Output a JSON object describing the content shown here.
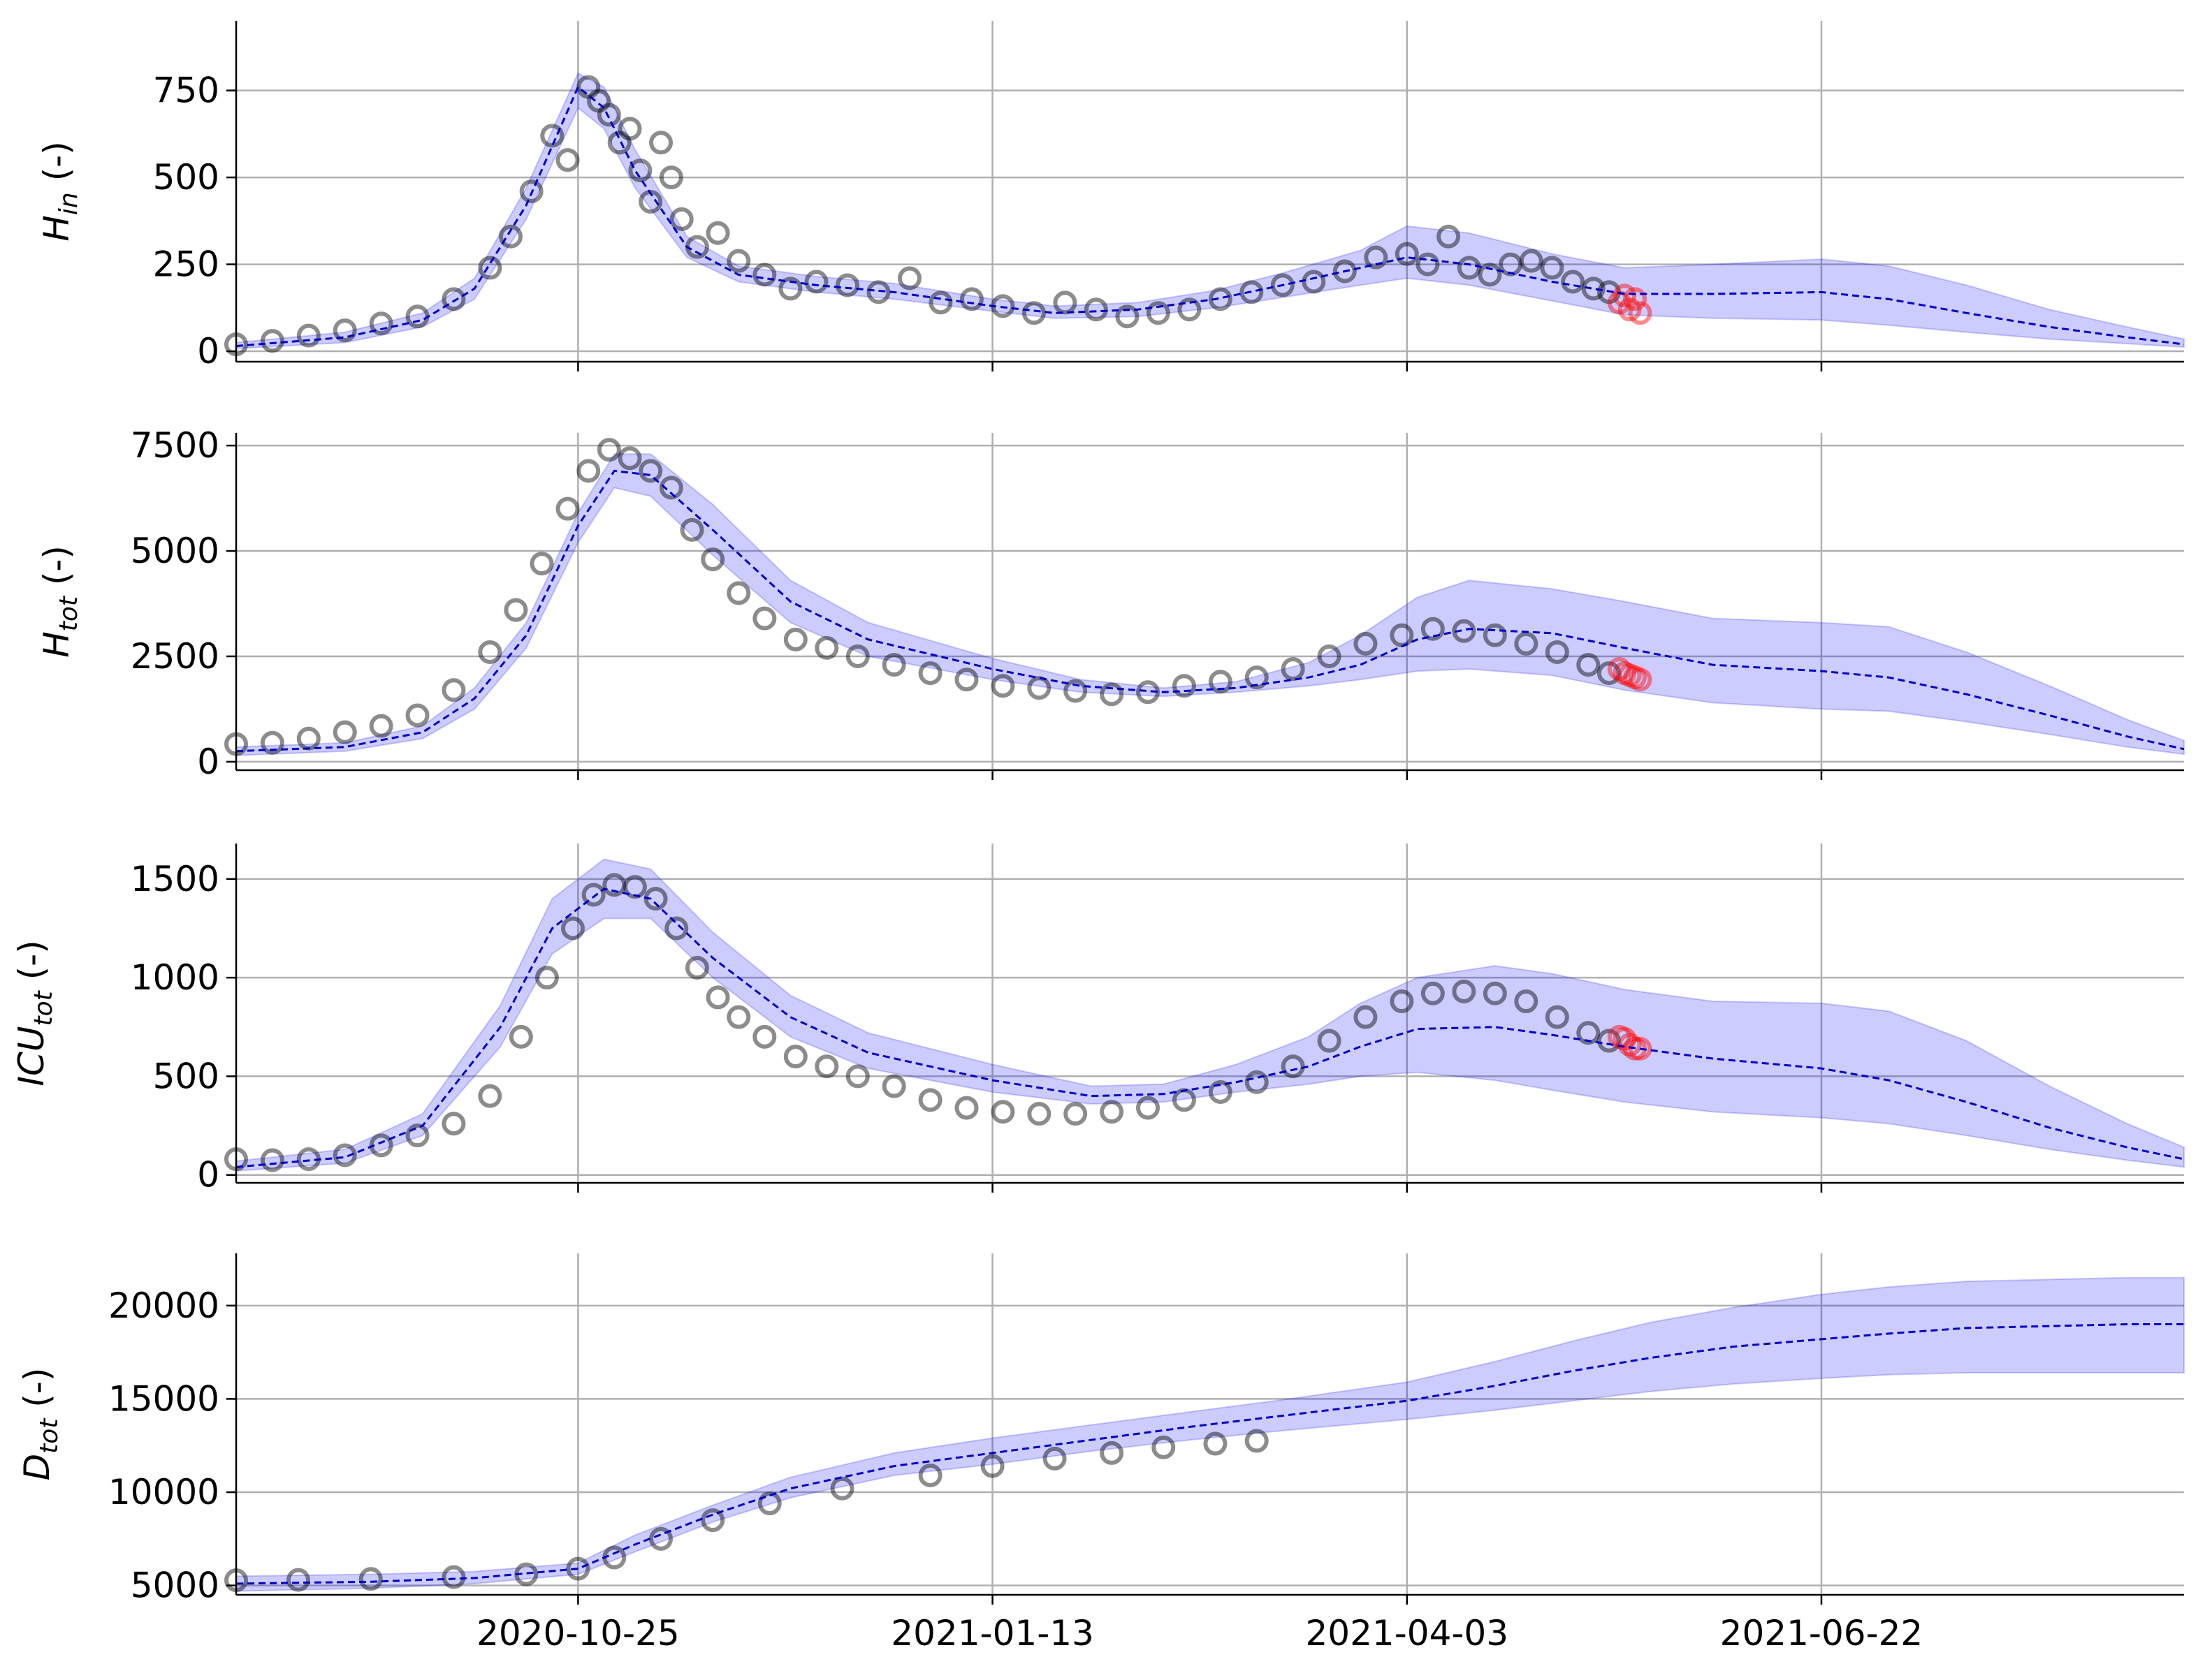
{
  "chart_data": [
    {
      "type": "line",
      "ylabel": {
        "base": "H",
        "sub": "in",
        "suffix": " (-)"
      },
      "ylim": [
        -30,
        950
      ],
      "yticks": [
        0,
        250,
        500,
        750
      ],
      "x_dates": [],
      "observed": {
        "dates": [
          "2020-08-20",
          "2020-08-27",
          "2020-09-03",
          "2020-09-10",
          "2020-09-17",
          "2020-09-24",
          "2020-10-01",
          "2020-10-08",
          "2020-10-12",
          "2020-10-16",
          "2020-10-20",
          "2020-10-23",
          "2020-10-27",
          "2020-10-29",
          "2020-10-31",
          "2020-11-02",
          "2020-11-04",
          "2020-11-06",
          "2020-11-08",
          "2020-11-10",
          "2020-11-12",
          "2020-11-14",
          "2020-11-17",
          "2020-11-21",
          "2020-11-25",
          "2020-11-30",
          "2020-12-05",
          "2020-12-10",
          "2020-12-16",
          "2020-12-22",
          "2020-12-28",
          "2021-01-03",
          "2021-01-09",
          "2021-01-15",
          "2021-01-21",
          "2021-01-27",
          "2021-02-02",
          "2021-02-08",
          "2021-02-14",
          "2021-02-20",
          "2021-02-26",
          "2021-03-04",
          "2021-03-10",
          "2021-03-16",
          "2021-03-22",
          "2021-03-28",
          "2021-04-03",
          "2021-04-07",
          "2021-04-11",
          "2021-04-15",
          "2021-04-19",
          "2021-04-23",
          "2021-04-27",
          "2021-05-01",
          "2021-05-05",
          "2021-05-09",
          "2021-05-12"
        ],
        "values": [
          20,
          30,
          45,
          60,
          80,
          100,
          150,
          240,
          330,
          460,
          620,
          550,
          760,
          720,
          680,
          600,
          640,
          520,
          430,
          600,
          500,
          380,
          300,
          340,
          260,
          220,
          180,
          200,
          190,
          170,
          210,
          140,
          150,
          130,
          110,
          140,
          120,
          100,
          110,
          120,
          150,
          170,
          190,
          200,
          230,
          270,
          280,
          250,
          330,
          240,
          220,
          250,
          260,
          240,
          200,
          180,
          170
        ]
      },
      "validation": {
        "dates": [
          "2021-05-14",
          "2021-05-15",
          "2021-05-16",
          "2021-05-17",
          "2021-05-18"
        ],
        "values": [
          140,
          160,
          120,
          150,
          110
        ]
      },
      "mean": {
        "dates": [
          "2020-08-20",
          "2020-09-10",
          "2020-09-25",
          "2020-10-05",
          "2020-10-15",
          "2020-10-25",
          "2020-10-30",
          "2020-11-05",
          "2020-11-15",
          "2020-11-25",
          "2020-12-10",
          "2020-12-25",
          "2021-01-13",
          "2021-01-25",
          "2021-02-10",
          "2021-02-25",
          "2021-03-10",
          "2021-03-25",
          "2021-04-03",
          "2021-04-15",
          "2021-05-01",
          "2021-05-15",
          "2021-06-01",
          "2021-06-22",
          "2021-07-05",
          "2021-07-20",
          "2021-08-05",
          "2021-08-20",
          "2021-08-31"
        ],
        "values": [
          15,
          40,
          90,
          180,
          420,
          760,
          700,
          520,
          300,
          220,
          190,
          170,
          130,
          110,
          120,
          150,
          190,
          240,
          270,
          250,
          200,
          165,
          165,
          170,
          150,
          110,
          70,
          40,
          20
        ]
      },
      "band": {
        "dates": [
          "2020-08-20",
          "2020-09-10",
          "2020-09-25",
          "2020-10-05",
          "2020-10-15",
          "2020-10-25",
          "2020-10-30",
          "2020-11-05",
          "2020-11-15",
          "2020-11-25",
          "2020-12-10",
          "2020-12-25",
          "2021-01-13",
          "2021-01-25",
          "2021-02-10",
          "2021-02-25",
          "2021-03-10",
          "2021-03-25",
          "2021-04-03",
          "2021-04-15",
          "2021-05-01",
          "2021-05-15",
          "2021-06-01",
          "2021-06-22",
          "2021-07-05",
          "2021-07-20",
          "2021-08-05",
          "2021-08-20",
          "2021-08-31"
        ],
        "lower": [
          8,
          25,
          70,
          150,
          380,
          700,
          640,
          470,
          270,
          200,
          170,
          150,
          115,
          95,
          100,
          125,
          155,
          190,
          210,
          190,
          145,
          105,
          95,
          90,
          75,
          55,
          35,
          22,
          12
        ],
        "upper": [
          25,
          55,
          110,
          210,
          470,
          800,
          760,
          580,
          330,
          245,
          215,
          195,
          150,
          130,
          140,
          175,
          225,
          290,
          360,
          340,
          280,
          240,
          250,
          265,
          245,
          190,
          120,
          70,
          35
        ]
      }
    },
    {
      "type": "line",
      "ylabel": {
        "base": "H",
        "sub": "tot",
        "suffix": " (-)"
      },
      "ylim": [
        -200,
        7800
      ],
      "yticks": [
        0,
        2500,
        5000,
        7500
      ],
      "x_dates": [],
      "observed": {
        "dates": [
          "2020-08-20",
          "2020-08-27",
          "2020-09-03",
          "2020-09-10",
          "2020-09-17",
          "2020-09-24",
          "2020-10-01",
          "2020-10-08",
          "2020-10-13",
          "2020-10-18",
          "2020-10-23",
          "2020-10-27",
          "2020-10-31",
          "2020-11-04",
          "2020-11-08",
          "2020-11-12",
          "2020-11-16",
          "2020-11-20",
          "2020-11-25",
          "2020-11-30",
          "2020-12-06",
          "2020-12-12",
          "2020-12-18",
          "2020-12-25",
          "2021-01-01",
          "2021-01-08",
          "2021-01-15",
          "2021-01-22",
          "2021-01-29",
          "2021-02-05",
          "2021-02-12",
          "2021-02-19",
          "2021-02-26",
          "2021-03-05",
          "2021-03-12",
          "2021-03-19",
          "2021-03-26",
          "2021-04-02",
          "2021-04-08",
          "2021-04-14",
          "2021-04-20",
          "2021-04-26",
          "2021-05-02",
          "2021-05-08",
          "2021-05-12"
        ],
        "values": [
          420,
          450,
          550,
          700,
          850,
          1100,
          1700,
          2600,
          3600,
          4700,
          6000,
          6900,
          7400,
          7200,
          6900,
          6500,
          5500,
          4800,
          4000,
          3400,
          2900,
          2700,
          2500,
          2300,
          2100,
          1950,
          1800,
          1750,
          1680,
          1600,
          1650,
          1800,
          1900,
          2000,
          2200,
          2500,
          2800,
          3000,
          3150,
          3100,
          3000,
          2800,
          2600,
          2300,
          2100
        ]
      },
      "validation": {
        "dates": [
          "2021-05-14",
          "2021-05-15",
          "2021-05-16",
          "2021-05-17",
          "2021-05-18"
        ],
        "values": [
          2200,
          2100,
          2050,
          2000,
          1950
        ]
      },
      "mean": {
        "dates": [
          "2020-08-20",
          "2020-09-10",
          "2020-09-25",
          "2020-10-05",
          "2020-10-15",
          "2020-10-25",
          "2020-11-01",
          "2020-11-08",
          "2020-11-20",
          "2020-12-05",
          "2020-12-20",
          "2021-01-13",
          "2021-01-30",
          "2021-02-15",
          "2021-03-01",
          "2021-03-15",
          "2021-03-25",
          "2021-04-05",
          "2021-04-15",
          "2021-05-01",
          "2021-05-15",
          "2021-06-01",
          "2021-06-22",
          "2021-07-05",
          "2021-07-20",
          "2021-08-05",
          "2021-08-20",
          "2021-08-31"
        ],
        "values": [
          250,
          350,
          700,
          1500,
          3000,
          5600,
          6900,
          6800,
          5500,
          3800,
          2900,
          2200,
          1800,
          1650,
          1750,
          2000,
          2300,
          2900,
          3150,
          3050,
          2700,
          2300,
          2150,
          2000,
          1600,
          1100,
          600,
          300
        ]
      },
      "band": {
        "dates": [
          "2020-08-20",
          "2020-09-10",
          "2020-09-25",
          "2020-10-05",
          "2020-10-15",
          "2020-10-25",
          "2020-11-01",
          "2020-11-08",
          "2020-11-20",
          "2020-12-05",
          "2020-12-20",
          "2021-01-13",
          "2021-01-30",
          "2021-02-15",
          "2021-03-01",
          "2021-03-15",
          "2021-03-25",
          "2021-04-05",
          "2021-04-15",
          "2021-05-01",
          "2021-05-15",
          "2021-06-01",
          "2021-06-22",
          "2021-07-05",
          "2021-07-20",
          "2021-08-05",
          "2021-08-20",
          "2021-08-31"
        ],
        "lower": [
          150,
          250,
          550,
          1250,
          2700,
          5200,
          6500,
          6300,
          4900,
          3300,
          2500,
          1950,
          1650,
          1550,
          1650,
          1800,
          1950,
          2150,
          2200,
          2050,
          1700,
          1400,
          1250,
          1200,
          950,
          650,
          350,
          180
        ],
        "upper": [
          350,
          450,
          850,
          1750,
          3300,
          5900,
          7300,
          7300,
          6100,
          4300,
          3300,
          2450,
          1950,
          1750,
          1900,
          2350,
          3000,
          3900,
          4300,
          4100,
          3800,
          3400,
          3300,
          3200,
          2600,
          1800,
          1000,
          500
        ]
      }
    },
    {
      "type": "line",
      "ylabel": {
        "base": "ICU",
        "sub": "tot",
        "suffix": " (-)"
      },
      "ylim": [
        -40,
        1680
      ],
      "yticks": [
        0,
        500,
        1000,
        1500
      ],
      "x_dates": [],
      "observed": {
        "dates": [
          "2020-08-20",
          "2020-08-27",
          "2020-09-03",
          "2020-09-10",
          "2020-09-17",
          "2020-09-24",
          "2020-10-01",
          "2020-10-08",
          "2020-10-14",
          "2020-10-19",
          "2020-10-24",
          "2020-10-28",
          "2020-11-01",
          "2020-11-05",
          "2020-11-09",
          "2020-11-13",
          "2020-11-17",
          "2020-11-21",
          "2020-11-25",
          "2020-11-30",
          "2020-12-06",
          "2020-12-12",
          "2020-12-18",
          "2020-12-25",
          "2021-01-01",
          "2021-01-08",
          "2021-01-15",
          "2021-01-22",
          "2021-01-29",
          "2021-02-05",
          "2021-02-12",
          "2021-02-19",
          "2021-02-26",
          "2021-03-05",
          "2021-03-12",
          "2021-03-19",
          "2021-03-26",
          "2021-04-02",
          "2021-04-08",
          "2021-04-14",
          "2021-04-20",
          "2021-04-26",
          "2021-05-02",
          "2021-05-08",
          "2021-05-12"
        ],
        "values": [
          80,
          75,
          80,
          100,
          150,
          200,
          260,
          400,
          700,
          1000,
          1250,
          1420,
          1470,
          1460,
          1400,
          1250,
          1050,
          900,
          800,
          700,
          600,
          550,
          500,
          450,
          380,
          340,
          320,
          310,
          310,
          320,
          340,
          380,
          420,
          470,
          550,
          680,
          800,
          880,
          920,
          930,
          920,
          880,
          800,
          720,
          680
        ]
      },
      "validation": {
        "dates": [
          "2021-05-14",
          "2021-05-15",
          "2021-05-16",
          "2021-05-17",
          "2021-05-18"
        ],
        "values": [
          700,
          690,
          660,
          640,
          640
        ]
      },
      "mean": {
        "dates": [
          "2020-08-20",
          "2020-09-10",
          "2020-09-25",
          "2020-10-10",
          "2020-10-20",
          "2020-10-30",
          "2020-11-08",
          "2020-11-20",
          "2020-12-05",
          "2020-12-20",
          "2021-01-13",
          "2021-02-01",
          "2021-02-15",
          "2021-03-01",
          "2021-03-15",
          "2021-03-25",
          "2021-04-05",
          "2021-04-20",
          "2021-05-01",
          "2021-05-15",
          "2021-06-01",
          "2021-06-22",
          "2021-07-05",
          "2021-07-20",
          "2021-08-05",
          "2021-08-20",
          "2021-08-31"
        ],
        "values": [
          40,
          90,
          250,
          750,
          1250,
          1450,
          1400,
          1100,
          800,
          620,
          480,
          400,
          410,
          470,
          550,
          650,
          740,
          750,
          710,
          650,
          590,
          540,
          480,
          370,
          240,
          140,
          80
        ]
      },
      "band": {
        "dates": [
          "2020-08-20",
          "2020-09-10",
          "2020-09-25",
          "2020-10-10",
          "2020-10-20",
          "2020-10-30",
          "2020-11-08",
          "2020-11-20",
          "2020-12-05",
          "2020-12-20",
          "2021-01-13",
          "2021-02-01",
          "2021-02-15",
          "2021-03-01",
          "2021-03-15",
          "2021-03-25",
          "2021-04-05",
          "2021-04-20",
          "2021-05-01",
          "2021-05-15",
          "2021-06-01",
          "2021-06-22",
          "2021-07-05",
          "2021-07-20",
          "2021-08-05",
          "2021-08-20",
          "2021-08-31"
        ],
        "lower": [
          20,
          60,
          200,
          650,
          1120,
          1300,
          1300,
          1000,
          700,
          540,
          420,
          360,
          370,
          420,
          460,
          500,
          520,
          480,
          430,
          370,
          320,
          290,
          260,
          200,
          130,
          75,
          40
        ],
        "upper": [
          70,
          130,
          310,
          860,
          1400,
          1600,
          1550,
          1230,
          910,
          720,
          560,
          450,
          460,
          560,
          700,
          870,
          1000,
          1060,
          1020,
          940,
          880,
          870,
          830,
          680,
          450,
          260,
          140
        ]
      }
    },
    {
      "type": "line",
      "ylabel": {
        "base": "D",
        "sub": "tot",
        "suffix": " (-)"
      },
      "ylim": [
        4500,
        22800
      ],
      "yticks": [
        5000,
        10000,
        15000,
        20000
      ],
      "x_dates": [
        "2020-10-25",
        "2021-01-13",
        "2021-04-03",
        "2021-06-22"
      ],
      "observed": {
        "dates": [
          "2020-08-20",
          "2020-09-01",
          "2020-09-15",
          "2020-10-01",
          "2020-10-15",
          "2020-10-25",
          "2020-11-01",
          "2020-11-10",
          "2020-11-20",
          "2020-12-01",
          "2020-12-15",
          "2021-01-01",
          "2021-01-13",
          "2021-01-25",
          "2021-02-05",
          "2021-02-15",
          "2021-02-25",
          "2021-03-05"
        ],
        "values": [
          5280,
          5300,
          5350,
          5450,
          5600,
          5900,
          6500,
          7500,
          8500,
          9400,
          10200,
          10900,
          11400,
          11800,
          12100,
          12400,
          12600,
          12750
        ]
      },
      "validation": {
        "dates": [],
        "values": []
      },
      "mean": {
        "dates": [
          "2020-08-20",
          "2020-09-15",
          "2020-10-05",
          "2020-10-25",
          "2020-11-05",
          "2020-11-20",
          "2020-12-05",
          "2020-12-25",
          "2021-01-13",
          "2021-02-01",
          "2021-02-20",
          "2021-03-10",
          "2021-04-03",
          "2021-04-20",
          "2021-05-05",
          "2021-05-20",
          "2021-06-05",
          "2021-06-22",
          "2021-07-05",
          "2021-07-20",
          "2021-08-05",
          "2021-08-20",
          "2021-08-31"
        ],
        "values": [
          5100,
          5200,
          5400,
          5900,
          7200,
          8800,
          10200,
          11400,
          12100,
          12800,
          13500,
          14100,
          14900,
          15700,
          16500,
          17200,
          17800,
          18200,
          18500,
          18800,
          18900,
          19000,
          19000
        ]
      },
      "band": {
        "dates": [
          "2020-08-20",
          "2020-09-15",
          "2020-10-05",
          "2020-10-25",
          "2020-11-05",
          "2020-11-20",
          "2020-12-05",
          "2020-12-25",
          "2021-01-13",
          "2021-02-01",
          "2021-02-20",
          "2021-03-10",
          "2021-04-03",
          "2021-04-20",
          "2021-05-05",
          "2021-05-20",
          "2021-06-05",
          "2021-06-22",
          "2021-07-05",
          "2021-07-20",
          "2021-08-05",
          "2021-08-20",
          "2021-08-31"
        ],
        "lower": [
          4700,
          4850,
          5100,
          5600,
          6800,
          8400,
          9700,
          10900,
          11500,
          12200,
          12800,
          13300,
          13900,
          14400,
          14900,
          15400,
          15800,
          16100,
          16300,
          16400,
          16400,
          16400,
          16400
        ],
        "upper": [
          5500,
          5600,
          5750,
          6200,
          7700,
          9300,
          10800,
          12100,
          12900,
          13600,
          14300,
          14950,
          15900,
          17000,
          18100,
          19100,
          19900,
          20600,
          21000,
          21300,
          21400,
          21500,
          21500
        ]
      }
    }
  ]
}
